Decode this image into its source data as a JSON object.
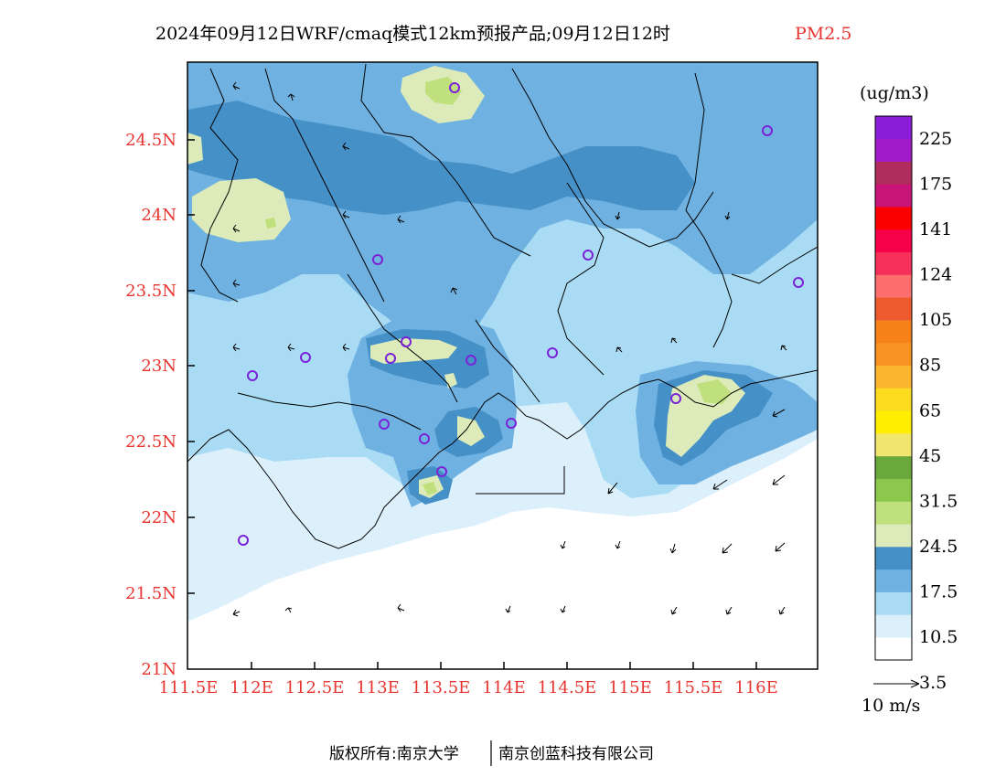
{
  "title": {
    "main": "2024年09月12日WRF/cmaq模式12km预报产品;09月12日12时",
    "pollutant": "PM2.5"
  },
  "map": {
    "lat_labels": [
      "24.5N",
      "24N",
      "23.5N",
      "23N",
      "22.5N",
      "22N",
      "21.5N",
      "21N"
    ],
    "lon_labels": [
      "111.5E",
      "112E",
      "112.5E",
      "113E",
      "113.5E",
      "114E",
      "114.5E",
      "115E",
      "115.5E",
      "116E"
    ],
    "colors": {
      "white": "#ffffff",
      "c1": "#dcf0fb",
      "c2": "#a9dcf4",
      "c3": "#6fb1e0",
      "c4": "#4690c8",
      "c5": "#dcebb9",
      "c6": "#bfe07c",
      "frame": "#000000",
      "station": "#7a22d8"
    }
  },
  "legend": {
    "unit": "(ug/m3)",
    "labels": [
      "225",
      "175",
      "141",
      "124",
      "105",
      "85",
      "65",
      "45",
      "31.5",
      "24.5",
      "17.5",
      "10.5",
      "3.5"
    ],
    "colors": [
      "#ffffff",
      "#dcf0fb",
      "#a9dcf4",
      "#6fb1e0",
      "#4690c8",
      "#dcebb9",
      "#bfe07c",
      "#8cc84e",
      "#6aa83c",
      "#f0e66e",
      "#ffee00",
      "#fcdc20",
      "#fbb630",
      "#f89422",
      "#f7821c",
      "#ec5a2e",
      "#fd6e6e",
      "#f7305a",
      "#f6004a",
      "#fa0000",
      "#c81478",
      "#b02c5c",
      "#a01cc8",
      "#8a1ed8"
    ]
  },
  "wind": {
    "reference_label": "10 m/s"
  },
  "credit": {
    "left": "版权所有:南京大学",
    "right": "南京创蓝科技有限公司"
  }
}
